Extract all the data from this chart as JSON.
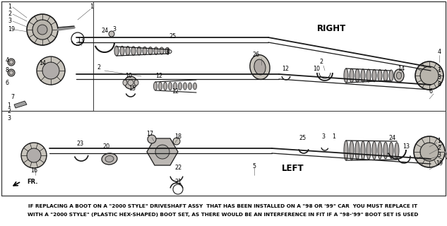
{
  "bg_color": "#f0eeea",
  "fig_width": 6.33,
  "fig_height": 3.2,
  "dpi": 100,
  "line_color": "#1a1a1a",
  "text_color": "#000000",
  "right_label": "RIGHT",
  "left_label": "LEFT",
  "fr_label": "FR.",
  "footer_line1": "IF REPLACING A BOOT ON A \"2000 STYLE\" DRIVESHAFT ASSY  THAT HAS BEEN INSTALLED ON A \"98 OR '99\" CAR  YOU MUST REPLACE IT",
  "footer_line2": "WITH A \"2000 STYLE\" (PLASTIC HEX-SHAPED) BOOT SET, AS THERE WOULD BE AN INTERFERENCE IN FIT IF A \"98-'99\" BOOT SET IS USED"
}
